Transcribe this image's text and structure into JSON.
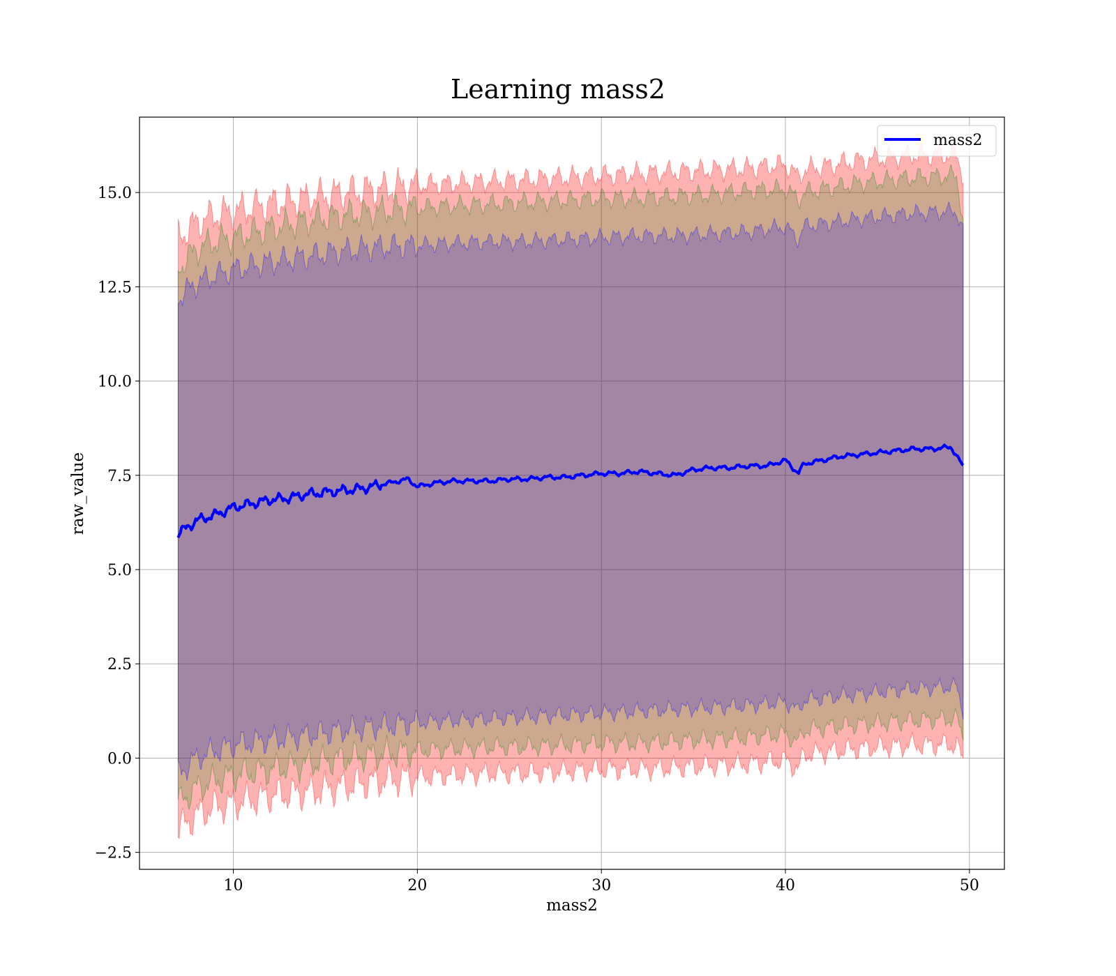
{
  "chart_data": {
    "type": "line",
    "title": "Learning mass2",
    "xlabel": "mass2",
    "ylabel": "raw_value",
    "xlim": [
      4.9,
      51.9
    ],
    "ylim": [
      -2.95,
      17.0
    ],
    "xticks": [
      10,
      20,
      30,
      40,
      50
    ],
    "xtick_labels": [
      "10",
      "20",
      "30",
      "40",
      "50"
    ],
    "yticks": [
      -2.5,
      0.0,
      2.5,
      5.0,
      7.5,
      10.0,
      12.5,
      15.0
    ],
    "ytick_labels": [
      "−2.5",
      "0.0",
      "2.5",
      "5.0",
      "7.5",
      "10.0",
      "12.5",
      "15.0"
    ],
    "grid": true,
    "legend": {
      "position": "top-right",
      "entries": [
        {
          "label": "mass2",
          "color": "#0000ff"
        }
      ]
    },
    "x_range": [
      7.0,
      49.7
    ],
    "series": [
      {
        "name": "mass2",
        "color": "#0000ff",
        "x": [
          7.0,
          8.0,
          9.0,
          10.0,
          11.0,
          12.0,
          13.0,
          14.0,
          15.0,
          16.0,
          17.0,
          18.0,
          19.0,
          19.5,
          20.0,
          21.0,
          22.0,
          23.0,
          24.0,
          25.0,
          26.0,
          27.0,
          28.0,
          29.0,
          30.0,
          31.0,
          32.0,
          33.0,
          34.0,
          35.0,
          36.0,
          37.0,
          38.0,
          39.0,
          40.0,
          40.7,
          41.0,
          42.0,
          43.0,
          44.0,
          45.0,
          46.0,
          47.0,
          48.0,
          49.0,
          49.7
        ],
        "y": [
          5.95,
          6.3,
          6.45,
          6.65,
          6.75,
          6.85,
          6.9,
          7.0,
          7.05,
          7.1,
          7.15,
          7.25,
          7.35,
          7.4,
          7.2,
          7.3,
          7.35,
          7.35,
          7.35,
          7.4,
          7.4,
          7.45,
          7.45,
          7.5,
          7.55,
          7.55,
          7.6,
          7.55,
          7.5,
          7.65,
          7.7,
          7.7,
          7.75,
          7.75,
          7.9,
          7.55,
          7.8,
          7.9,
          8.0,
          8.05,
          8.1,
          8.15,
          8.2,
          8.2,
          8.25,
          7.7
        ]
      }
    ],
    "bands": [
      {
        "color": "#ff0000",
        "opacity": 0.3,
        "x": [
          7.0,
          8.0,
          9.0,
          10.0,
          12.0,
          14.0,
          16.0,
          18.0,
          20.0,
          22.0,
          24.0,
          26.0,
          28.0,
          30.0,
          32.0,
          34.0,
          36.0,
          38.0,
          40.0,
          40.7,
          41.0,
          44.0,
          47.0,
          49.3,
          49.7
        ],
        "upper": [
          13.8,
          14.2,
          14.4,
          14.5,
          14.7,
          14.85,
          15.0,
          15.1,
          15.2,
          15.25,
          15.3,
          15.35,
          15.4,
          15.45,
          15.5,
          15.55,
          15.6,
          15.65,
          15.75,
          15.4,
          15.6,
          15.85,
          16.0,
          16.0,
          15.4
        ],
        "lower": [
          -1.9,
          -1.5,
          -1.3,
          -1.2,
          -1.0,
          -0.9,
          -0.75,
          -0.6,
          -0.5,
          -0.45,
          -0.4,
          -0.4,
          -0.35,
          -0.3,
          -0.3,
          -0.25,
          -0.2,
          -0.15,
          -0.05,
          -0.3,
          0.1,
          0.25,
          0.35,
          0.35,
          -0.15
        ]
      },
      {
        "color": "#008000",
        "opacity": 0.2,
        "x": [
          7.0,
          8.0,
          9.0,
          10.0,
          12.0,
          14.0,
          16.0,
          18.0,
          20.0,
          22.0,
          24.0,
          26.0,
          28.0,
          30.0,
          32.0,
          34.0,
          36.0,
          38.0,
          40.0,
          40.7,
          41.0,
          44.0,
          47.0,
          49.3,
          49.7
        ],
        "upper": [
          13.0,
          13.5,
          13.7,
          13.8,
          14.05,
          14.25,
          14.4,
          14.5,
          14.6,
          14.65,
          14.7,
          14.75,
          14.8,
          14.85,
          14.85,
          14.9,
          14.95,
          15.05,
          15.1,
          14.8,
          15.0,
          15.25,
          15.4,
          15.45,
          14.1
        ],
        "lower": [
          -1.2,
          -0.8,
          -0.6,
          -0.45,
          -0.3,
          -0.15,
          0.0,
          0.1,
          0.2,
          0.25,
          0.3,
          0.3,
          0.35,
          0.4,
          0.4,
          0.45,
          0.5,
          0.55,
          0.65,
          0.4,
          0.75,
          0.9,
          1.0,
          1.05,
          0.5
        ]
      },
      {
        "color": "#0000ff",
        "opacity": 0.2,
        "x": [
          7.0,
          8.0,
          9.0,
          10.0,
          12.0,
          14.0,
          16.0,
          18.0,
          20.0,
          22.0,
          24.0,
          26.0,
          28.0,
          30.0,
          32.0,
          34.0,
          36.0,
          38.0,
          40.0,
          40.7,
          41.0,
          44.0,
          47.0,
          49.3,
          49.7
        ],
        "upper": [
          12.2,
          12.6,
          12.8,
          12.95,
          13.15,
          13.3,
          13.45,
          13.55,
          13.6,
          13.65,
          13.7,
          13.7,
          13.75,
          13.8,
          13.85,
          13.85,
          13.9,
          13.95,
          14.1,
          13.75,
          14.1,
          14.3,
          14.45,
          14.5,
          13.9
        ],
        "lower": [
          -0.4,
          0.0,
          0.2,
          0.35,
          0.5,
          0.6,
          0.75,
          0.85,
          0.95,
          1.0,
          1.05,
          1.1,
          1.15,
          1.2,
          1.25,
          1.3,
          1.35,
          1.4,
          1.5,
          1.25,
          1.55,
          1.7,
          1.85,
          1.9,
          1.2
        ]
      }
    ]
  }
}
